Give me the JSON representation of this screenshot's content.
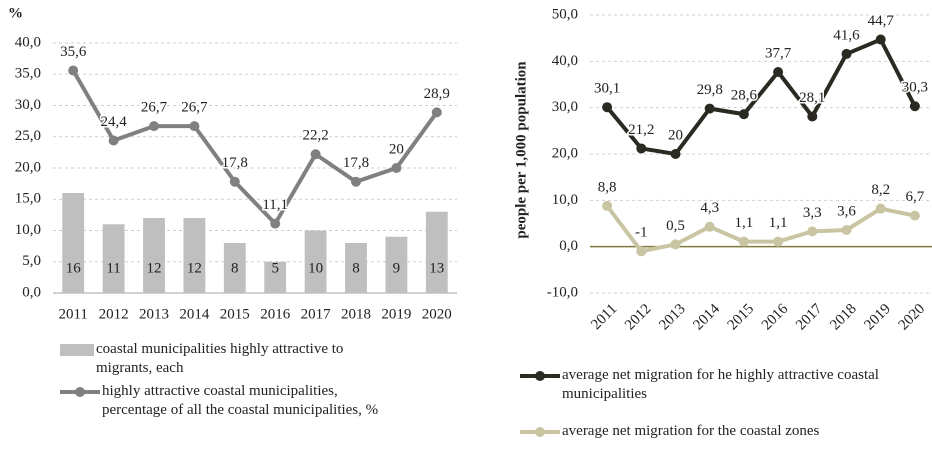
{
  "chart_data": [
    {
      "type": "combo",
      "y_label": "%",
      "categories": [
        "2011",
        "2012",
        "2013",
        "2014",
        "2015",
        "2016",
        "2017",
        "2018",
        "2019",
        "2020"
      ],
      "ylim": [
        0,
        40
      ],
      "yticks": [
        {
          "value": 0,
          "label": "0,0"
        },
        {
          "value": 5,
          "label": "5,0"
        },
        {
          "value": 10,
          "label": "10,0"
        },
        {
          "value": 15,
          "label": "15,0"
        },
        {
          "value": 20,
          "label": "20,0"
        },
        {
          "value": 25,
          "label": "25,0"
        },
        {
          "value": 30,
          "label": "30,0"
        },
        {
          "value": 35,
          "label": "35,0"
        },
        {
          "value": 40,
          "label": "40,0"
        }
      ],
      "grid": true,
      "series": [
        {
          "name": "coastal municipalities highly attractive to migrants, each",
          "type": "bar",
          "color": "#bfbfbf",
          "values": [
            16,
            11,
            12,
            12,
            8,
            5,
            10,
            8,
            9,
            13
          ]
        },
        {
          "name": "highly attractive coastal municipalities, percentage of all the coastal municipalities, %",
          "type": "line",
          "color": "#808080",
          "values": [
            35.6,
            24.4,
            26.7,
            26.7,
            17.8,
            11.1,
            22.2,
            17.8,
            20,
            28.9
          ],
          "value_labels": [
            "35,6",
            "24,4",
            "26,7",
            "26,7",
            "17,8",
            "11,1",
            "22,2",
            "17,8",
            "20",
            "28,9"
          ]
        }
      ]
    },
    {
      "type": "line",
      "y_label": "people per 1,000 population",
      "categories": [
        "2011",
        "2012",
        "2013",
        "2014",
        "2015",
        "2016",
        "2017",
        "2018",
        "2019",
        "2020"
      ],
      "ylim": [
        -10,
        50
      ],
      "yticks": [
        {
          "value": -10,
          "label": "-10,0"
        },
        {
          "value": 0,
          "label": "0,0"
        },
        {
          "value": 10,
          "label": "10,0"
        },
        {
          "value": 20,
          "label": "20,0"
        },
        {
          "value": 30,
          "label": "30,0"
        },
        {
          "value": 40,
          "label": "40,0"
        },
        {
          "value": 50,
          "label": "50,0"
        }
      ],
      "grid": true,
      "series": [
        {
          "name": "average net migration for he highly attractive coastal municipalities",
          "type": "line",
          "color": "#2b2a22",
          "values": [
            30.1,
            21.2,
            20,
            29.8,
            28.6,
            37.7,
            28.1,
            41.6,
            44.7,
            30.3
          ],
          "value_labels": [
            "30,1",
            "21,2",
            "20",
            "29,8",
            "28,6",
            "37,7",
            "28,1",
            "41,6",
            "44,7",
            "30,3"
          ]
        },
        {
          "name": "average net migration for the coastal zones",
          "type": "line",
          "color": "#c9c5a2",
          "values": [
            8.8,
            -1,
            0.5,
            4.3,
            1.1,
            1.1,
            3.3,
            3.6,
            8.2,
            6.7
          ],
          "value_labels": [
            "8,8",
            "-1",
            "0,5",
            "4,3",
            "1,1",
            "1,1",
            "3,3",
            "3,6",
            "8,2",
            "6,7"
          ]
        }
      ]
    }
  ]
}
